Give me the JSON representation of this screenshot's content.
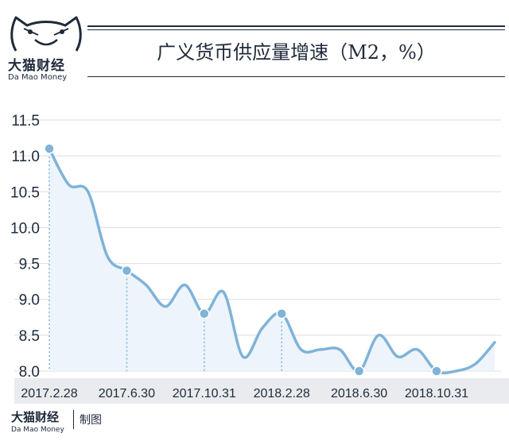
{
  "header": {
    "brand_cn": "大猫财经",
    "brand_en": "Da Mao Money",
    "title": "广义货币供应量增速（M2，%）"
  },
  "footer": {
    "brand_cn": "大猫财经",
    "brand_en": "Da Mao Money",
    "note": "制图"
  },
  "colors": {
    "line": "#7fb3d8",
    "area": "#eef4fb",
    "marker": "#7fb3d8",
    "text": "#1f2a3a",
    "axis_band": "#e9ebee"
  },
  "chart_data": {
    "type": "area",
    "title": "广义货币供应量增速（M2，%）",
    "xlabel": "",
    "ylabel": "",
    "ylim": [
      8.0,
      11.5
    ],
    "y_ticks": [
      8.0,
      8.5,
      9.0,
      9.5,
      10.0,
      10.5,
      11.0,
      11.5
    ],
    "x_tick_labels": [
      "2017.2.28",
      "2017.6.30",
      "2017.10.31",
      "2018.2.28",
      "2018.6.30",
      "2018.10.31"
    ],
    "x_tick_index": [
      0,
      4,
      8,
      12,
      16,
      20
    ],
    "grid": "horizontal",
    "series": [
      {
        "values": [
          11.1,
          10.6,
          10.5,
          9.6,
          9.4,
          9.2,
          8.9,
          9.2,
          8.8,
          9.1,
          8.2,
          8.6,
          8.8,
          8.3,
          8.3,
          8.3,
          8.0,
          8.5,
          8.2,
          8.3,
          8.0,
          8.0,
          8.1,
          8.4
        ],
        "markers": [
          0,
          4,
          8,
          12,
          16,
          20
        ]
      }
    ]
  }
}
